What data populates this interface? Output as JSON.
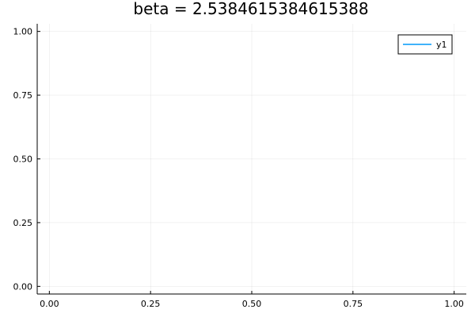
{
  "chart_data": {
    "type": "line",
    "title": "beta = 2.5384615384615388",
    "xlabel": "",
    "ylabel": "",
    "xlim": [
      -0.03,
      1.03
    ],
    "ylim": [
      -0.03,
      1.03
    ],
    "x_ticks": [
      0.0,
      0.25,
      0.5,
      0.75,
      1.0
    ],
    "x_tick_labels": [
      "0.00",
      "0.25",
      "0.50",
      "0.75",
      "1.00"
    ],
    "y_ticks": [
      0.0,
      0.25,
      0.5,
      0.75,
      1.0
    ],
    "y_tick_labels": [
      "0.00",
      "0.25",
      "0.50",
      "0.75",
      "1.00"
    ],
    "grid": true,
    "legend_position": "top-right",
    "series": [
      {
        "name": "y1",
        "color": "#009af9",
        "x": [],
        "y": []
      }
    ]
  }
}
